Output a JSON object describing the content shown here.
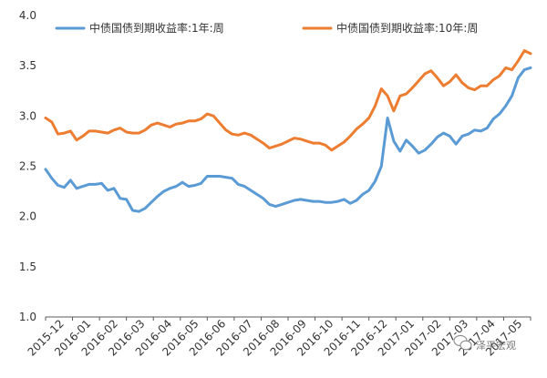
{
  "chart_data": {
    "type": "line",
    "title": "",
    "xlabel": "",
    "ylabel": "",
    "ylim": [
      1.0,
      4.0
    ],
    "yticks": [
      "1.0",
      "1.5",
      "2.0",
      "2.5",
      "3.0",
      "3.5",
      "4.0"
    ],
    "x_tick_labels": [
      "2015-12",
      "2016-01",
      "2016-02",
      "2016-03",
      "2016-04",
      "2016-05",
      "2016-06",
      "2016-07",
      "2016-08",
      "2016-09",
      "2016-10",
      "2016-11",
      "2016-12",
      "2017-01",
      "2017-02",
      "2017-03",
      "2017-04",
      "2017-05"
    ],
    "grid": false,
    "legend": "top",
    "series": [
      {
        "name": "中债国债到期收益率:1年:周",
        "color": "#5b9bd5",
        "values": [
          2.47,
          2.38,
          2.31,
          2.29,
          2.36,
          2.28,
          2.3,
          2.32,
          2.32,
          2.33,
          2.26,
          2.28,
          2.18,
          2.17,
          2.06,
          2.05,
          2.08,
          2.14,
          2.2,
          2.25,
          2.28,
          2.3,
          2.34,
          2.3,
          2.31,
          2.33,
          2.4,
          2.4,
          2.4,
          2.39,
          2.38,
          2.32,
          2.3,
          2.26,
          2.22,
          2.18,
          2.12,
          2.1,
          2.12,
          2.14,
          2.16,
          2.17,
          2.16,
          2.15,
          2.15,
          2.14,
          2.14,
          2.15,
          2.17,
          2.13,
          2.16,
          2.22,
          2.26,
          2.35,
          2.5,
          2.98,
          2.75,
          2.65,
          2.76,
          2.7,
          2.63,
          2.66,
          2.72,
          2.79,
          2.83,
          2.8,
          2.72,
          2.8,
          2.82,
          2.86,
          2.85,
          2.88,
          2.97,
          3.02,
          3.1,
          3.2,
          3.38,
          3.46,
          3.48
        ]
      },
      {
        "name": "中债国债到期收益率:10年:周",
        "color": "#ed7d31",
        "values": [
          2.98,
          2.94,
          2.82,
          2.83,
          2.85,
          2.76,
          2.8,
          2.85,
          2.85,
          2.84,
          2.83,
          2.86,
          2.88,
          2.84,
          2.83,
          2.83,
          2.86,
          2.91,
          2.93,
          2.91,
          2.89,
          2.92,
          2.93,
          2.95,
          2.95,
          2.97,
          3.02,
          3.0,
          2.93,
          2.86,
          2.82,
          2.81,
          2.83,
          2.81,
          2.77,
          2.73,
          2.68,
          2.7,
          2.72,
          2.75,
          2.78,
          2.77,
          2.75,
          2.73,
          2.73,
          2.71,
          2.66,
          2.7,
          2.74,
          2.8,
          2.87,
          2.92,
          2.98,
          3.1,
          3.27,
          3.2,
          3.05,
          3.2,
          3.22,
          3.28,
          3.35,
          3.42,
          3.45,
          3.38,
          3.3,
          3.34,
          3.41,
          3.33,
          3.28,
          3.26,
          3.3,
          3.3,
          3.36,
          3.4,
          3.48,
          3.46,
          3.55,
          3.65,
          3.62
        ]
      }
    ]
  },
  "watermark": {
    "icon": "wechat-logo-icon",
    "text": "泽平宏观"
  }
}
